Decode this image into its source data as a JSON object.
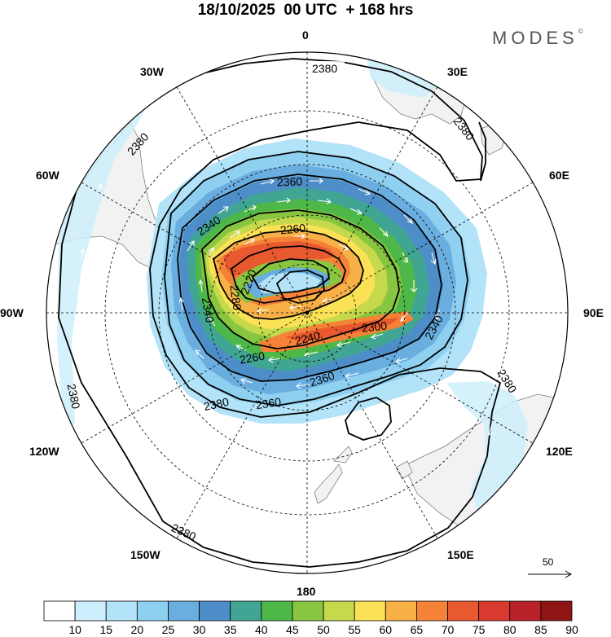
{
  "header": {
    "title": "18/10/2025  00 UTC  + 168 hrs",
    "brand": "MODES",
    "brand_mark": "©"
  },
  "map": {
    "projection": "south-polar-stereographic",
    "longitude_labels": [
      "0",
      "30E",
      "60E",
      "90E",
      "120E",
      "150E",
      "180",
      "150W",
      "120W",
      "90W",
      "60W",
      "30W"
    ],
    "contour_labels": [
      "2380",
      "2380",
      "2380",
      "2380",
      "2380",
      "2380",
      "2380",
      "2360",
      "2360",
      "2360",
      "2340",
      "2340",
      "2340",
      "2300",
      "2260",
      "2260",
      "2240",
      "2280",
      "2220"
    ],
    "reference_vector_label": "50"
  },
  "colorbar": {
    "tick_labels": [
      "10",
      "15",
      "20",
      "25",
      "30",
      "35",
      "40",
      "45",
      "50",
      "55",
      "60",
      "65",
      "70",
      "75",
      "80",
      "85",
      "90"
    ],
    "colors": [
      "#ffffff",
      "#cdeefc",
      "#b3e3f8",
      "#8fd0f0",
      "#6aaee0",
      "#4e8ec8",
      "#41a593",
      "#4db848",
      "#88c540",
      "#c6d94c",
      "#fbe155",
      "#f7b146",
      "#f48237",
      "#e9592f",
      "#d93a2f",
      "#b82228",
      "#8f1414"
    ]
  },
  "colors": {
    "land": "#f2f2f2",
    "coast": "#7f7f7f",
    "contour": "#000000",
    "grid": "#000000",
    "wind_arrow": "#ffffff"
  }
}
